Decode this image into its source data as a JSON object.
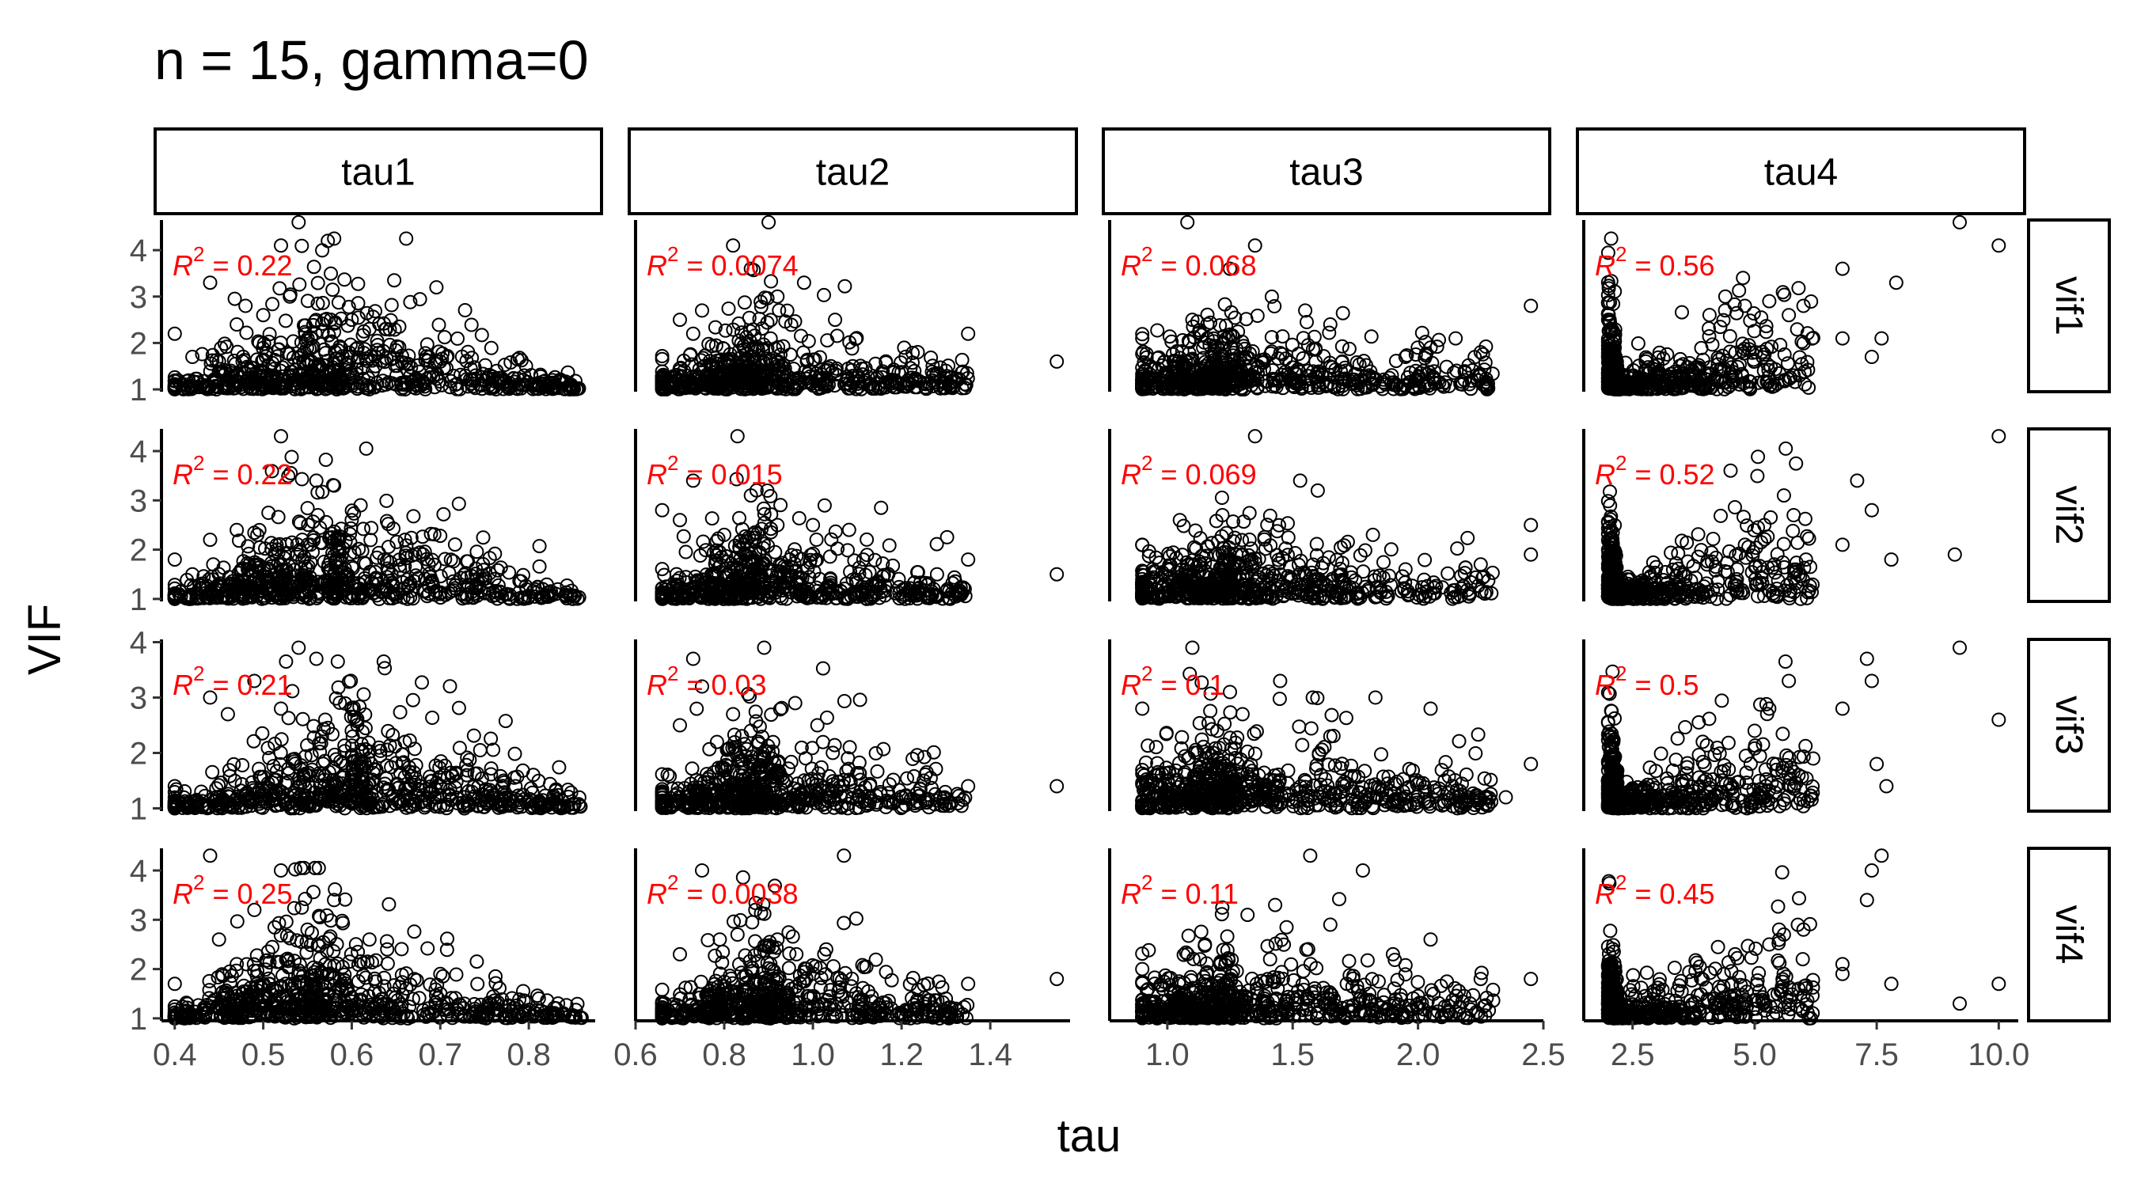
{
  "chart_data": {
    "type": "scatter",
    "title": "n = 15, gamma=0",
    "xlabel": "tau",
    "ylabel": "VIF",
    "grid": false,
    "marker": "open-circle",
    "annotation_color": "#ff0000",
    "columns": [
      {
        "label": "tau1",
        "xlim": [
          0.385,
          0.875
        ],
        "xticks": [
          0.4,
          0.5,
          0.6,
          0.7,
          0.8
        ],
        "xtick_labels": [
          "0.4",
          "0.5",
          "0.6",
          "0.7",
          "0.8"
        ]
      },
      {
        "label": "tau2",
        "xlim": [
          0.6,
          1.58
        ],
        "xticks": [
          0.6,
          0.8,
          1.0,
          1.2,
          1.4
        ],
        "xtick_labels": [
          "0.6",
          "0.8",
          "1.0",
          "1.2",
          "1.4"
        ]
      },
      {
        "label": "tau3",
        "xlim": [
          0.77,
          2.5
        ],
        "xticks": [
          1.0,
          1.5,
          2.0,
          2.5
        ],
        "xtick_labels": [
          "1.0",
          "1.5",
          "2.0",
          "2.5"
        ]
      },
      {
        "label": "tau4",
        "xlim": [
          1.5,
          10.4
        ],
        "xticks": [
          2.5,
          5.0,
          7.5,
          10.0
        ],
        "xtick_labels": [
          "2.5",
          "5.0",
          "7.5",
          "10.0"
        ]
      }
    ],
    "rows": [
      {
        "label": "vif1",
        "ylim": [
          0.95,
          4.65
        ],
        "yticks": [
          1,
          2,
          3,
          4
        ],
        "ytick_labels": [
          "1",
          "2",
          "3",
          "4"
        ]
      },
      {
        "label": "vif2",
        "ylim": [
          0.95,
          4.45
        ],
        "yticks": [
          1,
          2,
          3,
          4
        ],
        "ytick_labels": [
          "1",
          "2",
          "3",
          "4"
        ]
      },
      {
        "label": "vif3",
        "ylim": [
          0.95,
          4.05
        ],
        "yticks": [
          1,
          2,
          3,
          4
        ],
        "ytick_labels": [
          "1",
          "2",
          "3",
          "4"
        ]
      },
      {
        "label": "vif4",
        "ylim": [
          0.95,
          4.45
        ],
        "yticks": [
          1,
          2,
          3,
          4
        ],
        "ytick_labels": [
          "1",
          "2",
          "3",
          "4"
        ]
      }
    ],
    "r2_prefix": "R",
    "r2_exponent": "2",
    "r2_separator": " = ",
    "r2": [
      [
        "0.22",
        "0.0074",
        "0.068",
        "0.56"
      ],
      [
        "0.22",
        "0.015",
        "0.069",
        "0.52"
      ],
      [
        "0.21",
        "0.03",
        "0.1",
        "0.5"
      ],
      [
        "0.25",
        "0.0038",
        "0.11",
        "0.45"
      ]
    ],
    "bulk": [
      [
        {
          "xmin": 0.4,
          "xmax": 0.86,
          "mode": 0.58,
          "yfloor": 1.0,
          "peak_spread": 1.5,
          "edge_spread": 0.12,
          "n": 700
        },
        {
          "xmin": 0.66,
          "xmax": 1.35,
          "mode": 0.88,
          "yfloor": 1.0,
          "peak_spread": 1.1,
          "edge_spread": 0.35,
          "n": 600
        },
        {
          "xmin": 0.9,
          "xmax": 2.3,
          "mode": 1.25,
          "yfloor": 1.0,
          "peak_spread": 1.0,
          "edge_spread": 0.55,
          "n": 650
        },
        {
          "xmin": 2.0,
          "xmax": 6.2,
          "mode": 2.2,
          "yfloor": 1.0,
          "peak_spread": 0.2,
          "edge_spread": 1.8,
          "n": 650
        }
      ],
      [
        {
          "xmin": 0.4,
          "xmax": 0.86,
          "mode": 0.58,
          "yfloor": 1.0,
          "peak_spread": 1.5,
          "edge_spread": 0.12,
          "n": 700
        },
        {
          "xmin": 0.66,
          "xmax": 1.35,
          "mode": 0.88,
          "yfloor": 1.0,
          "peak_spread": 1.1,
          "edge_spread": 0.35,
          "n": 600
        },
        {
          "xmin": 0.9,
          "xmax": 2.3,
          "mode": 1.25,
          "yfloor": 1.0,
          "peak_spread": 1.0,
          "edge_spread": 0.55,
          "n": 650
        },
        {
          "xmin": 2.0,
          "xmax": 6.2,
          "mode": 2.2,
          "yfloor": 1.0,
          "peak_spread": 0.2,
          "edge_spread": 1.7,
          "n": 650
        }
      ],
      [
        {
          "xmin": 0.4,
          "xmax": 0.86,
          "mode": 0.6,
          "yfloor": 1.0,
          "peak_spread": 1.4,
          "edge_spread": 0.12,
          "n": 700
        },
        {
          "xmin": 0.66,
          "xmax": 1.35,
          "mode": 0.88,
          "yfloor": 1.0,
          "peak_spread": 1.2,
          "edge_spread": 0.35,
          "n": 600
        },
        {
          "xmin": 0.9,
          "xmax": 2.3,
          "mode": 1.25,
          "yfloor": 1.0,
          "peak_spread": 1.1,
          "edge_spread": 0.55,
          "n": 650
        },
        {
          "xmin": 2.0,
          "xmax": 6.2,
          "mode": 2.2,
          "yfloor": 1.0,
          "peak_spread": 0.2,
          "edge_spread": 1.6,
          "n": 650
        }
      ],
      [
        {
          "xmin": 0.4,
          "xmax": 0.86,
          "mode": 0.56,
          "yfloor": 1.0,
          "peak_spread": 1.5,
          "edge_spread": 0.12,
          "n": 700
        },
        {
          "xmin": 0.66,
          "xmax": 1.35,
          "mode": 0.9,
          "yfloor": 1.0,
          "peak_spread": 1.2,
          "edge_spread": 0.35,
          "n": 600
        },
        {
          "xmin": 0.9,
          "xmax": 2.3,
          "mode": 1.25,
          "yfloor": 1.0,
          "peak_spread": 1.0,
          "edge_spread": 0.55,
          "n": 650
        },
        {
          "xmin": 2.0,
          "xmax": 6.2,
          "mode": 2.2,
          "yfloor": 1.0,
          "peak_spread": 0.2,
          "edge_spread": 1.5,
          "n": 650
        }
      ]
    ],
    "outliers": [
      [
        [
          [
            0.4,
            2.2
          ],
          [
            0.44,
            3.3
          ],
          [
            0.52,
            4.1
          ],
          [
            0.54,
            4.6
          ],
          [
            0.48,
            2.8
          ],
          [
            0.5,
            2.6
          ],
          [
            0.53,
            3.0
          ],
          [
            0.45,
            1.6
          ],
          [
            0.47,
            2.4
          ],
          [
            0.6,
            2.5
          ],
          [
            0.62,
            2.3
          ],
          [
            0.7,
            1.6
          ],
          [
            0.74,
            1.3
          ],
          [
            0.42,
            1.7
          ]
        ],
        [
          [
            0.82,
            4.1
          ],
          [
            0.9,
            4.6
          ],
          [
            0.98,
            3.3
          ],
          [
            0.92,
            3.0
          ],
          [
            0.75,
            2.7
          ],
          [
            0.73,
            2.2
          ],
          [
            1.35,
            2.2
          ],
          [
            1.55,
            1.6
          ],
          [
            1.3,
            1.4
          ],
          [
            0.86,
            3.6
          ],
          [
            1.05,
            2.5
          ],
          [
            0.7,
            2.5
          ]
        ],
        [
          [
            1.08,
            4.6
          ],
          [
            1.35,
            4.1
          ],
          [
            1.25,
            3.6
          ],
          [
            1.55,
            2.7
          ],
          [
            2.45,
            2.8
          ],
          [
            2.15,
            2.1
          ],
          [
            2.25,
            1.8
          ],
          [
            0.9,
            2.1
          ],
          [
            1.65,
            2.4
          ],
          [
            1.1,
            2.5
          ],
          [
            1.95,
            1.7
          ],
          [
            2.05,
            1.9
          ]
        ],
        [
          [
            9.2,
            4.6
          ],
          [
            10.0,
            4.1
          ],
          [
            7.9,
            3.3
          ],
          [
            6.8,
            3.6
          ],
          [
            5.3,
            2.9
          ],
          [
            6.0,
            2.8
          ],
          [
            5.7,
            2.6
          ],
          [
            6.8,
            2.1
          ],
          [
            7.6,
            2.1
          ],
          [
            7.4,
            1.7
          ],
          [
            5.8,
            1.3
          ],
          [
            4.4,
            3.0
          ],
          [
            4.8,
            2.8
          ]
        ]
      ],
      [
        [
          [
            0.52,
            4.3
          ],
          [
            0.56,
            3.4
          ],
          [
            0.58,
            3.3
          ],
          [
            0.47,
            2.4
          ],
          [
            0.44,
            2.2
          ],
          [
            0.4,
            1.8
          ],
          [
            0.6,
            2.6
          ],
          [
            0.61,
            2.9
          ],
          [
            0.42,
            1.5
          ],
          [
            0.55,
            2.1
          ],
          [
            0.66,
            2.2
          ]
        ],
        [
          [
            0.83,
            4.3
          ],
          [
            0.86,
            3.1
          ],
          [
            0.73,
            3.4
          ],
          [
            0.66,
            2.8
          ],
          [
            0.7,
            2.6
          ],
          [
            0.92,
            2.5
          ],
          [
            1.35,
            1.8
          ],
          [
            1.55,
            1.5
          ],
          [
            1.28,
            1.5
          ],
          [
            1.0,
            2.5
          ],
          [
            0.8,
            2.3
          ]
        ],
        [
          [
            1.35,
            4.3
          ],
          [
            1.53,
            3.4
          ],
          [
            1.22,
            2.7
          ],
          [
            1.6,
            3.2
          ],
          [
            2.45,
            2.5
          ],
          [
            2.45,
            1.9
          ],
          [
            2.25,
            1.7
          ],
          [
            0.9,
            2.1
          ],
          [
            1.82,
            2.3
          ],
          [
            1.05,
            2.6
          ],
          [
            1.95,
            1.6
          ]
        ],
        [
          [
            10.0,
            4.3
          ],
          [
            7.1,
            3.4
          ],
          [
            5.6,
            3.1
          ],
          [
            7.4,
            2.8
          ],
          [
            7.8,
            1.8
          ],
          [
            9.1,
            1.9
          ],
          [
            6.8,
            2.1
          ],
          [
            5.8,
            2.7
          ],
          [
            5.4,
            1.7
          ],
          [
            5.9,
            1.5
          ],
          [
            5.2,
            2.5
          ],
          [
            4.8,
            2.1
          ]
        ]
      ],
      [
        [
          [
            0.54,
            3.9
          ],
          [
            0.56,
            3.7
          ],
          [
            0.49,
            3.3
          ],
          [
            0.44,
            3.0
          ],
          [
            0.46,
            2.7
          ],
          [
            0.52,
            2.8
          ],
          [
            0.4,
            1.4
          ],
          [
            0.43,
            1.3
          ],
          [
            0.57,
            2.6
          ],
          [
            0.66,
            2.2
          ],
          [
            0.6,
            2.4
          ]
        ],
        [
          [
            0.73,
            3.7
          ],
          [
            0.89,
            3.9
          ],
          [
            0.75,
            3.2
          ],
          [
            0.96,
            2.9
          ],
          [
            0.82,
            2.7
          ],
          [
            1.01,
            2.5
          ],
          [
            1.55,
            1.4
          ],
          [
            1.35,
            1.4
          ],
          [
            1.25,
            1.5
          ],
          [
            0.7,
            2.5
          ],
          [
            0.86,
            2.4
          ]
        ],
        [
          [
            1.1,
            3.9
          ],
          [
            1.45,
            3.3
          ],
          [
            1.25,
            3.1
          ],
          [
            1.58,
            3.0
          ],
          [
            1.83,
            3.0
          ],
          [
            2.05,
            2.8
          ],
          [
            2.45,
            1.8
          ],
          [
            2.35,
            1.2
          ],
          [
            0.9,
            2.8
          ],
          [
            1.3,
            2.7
          ],
          [
            1.65,
            2.3
          ]
        ],
        [
          [
            9.2,
            3.9
          ],
          [
            10.0,
            2.6
          ],
          [
            7.3,
            3.7
          ],
          [
            7.4,
            3.3
          ],
          [
            5.7,
            3.3
          ],
          [
            5.3,
            2.8
          ],
          [
            6.8,
            2.8
          ],
          [
            7.7,
            1.4
          ],
          [
            7.5,
            1.8
          ],
          [
            5.9,
            1.6
          ],
          [
            6.2,
            1.9
          ],
          [
            5.0,
            2.4
          ]
        ]
      ],
      [
        [
          [
            0.44,
            4.3
          ],
          [
            0.52,
            4.0
          ],
          [
            0.58,
            3.4
          ],
          [
            0.49,
            3.2
          ],
          [
            0.55,
            2.8
          ],
          [
            0.45,
            2.6
          ],
          [
            0.4,
            1.7
          ],
          [
            0.62,
            2.6
          ],
          [
            0.64,
            2.4
          ],
          [
            0.7,
            1.9
          ],
          [
            0.47,
            2.1
          ]
        ],
        [
          [
            0.75,
            4.0
          ],
          [
            1.07,
            4.3
          ],
          [
            0.87,
            3.2
          ],
          [
            0.83,
            2.7
          ],
          [
            0.79,
            2.6
          ],
          [
            1.03,
            2.4
          ],
          [
            1.35,
            1.7
          ],
          [
            1.55,
            1.8
          ],
          [
            1.3,
            1.4
          ],
          [
            0.7,
            2.3
          ],
          [
            0.92,
            2.6
          ]
        ],
        [
          [
            1.57,
            4.3
          ],
          [
            1.78,
            4.0
          ],
          [
            1.43,
            3.3
          ],
          [
            1.32,
            3.1
          ],
          [
            1.65,
            2.9
          ],
          [
            2.05,
            2.6
          ],
          [
            2.45,
            1.8
          ],
          [
            2.25,
            1.8
          ],
          [
            0.9,
            2.0
          ],
          [
            1.9,
            2.3
          ],
          [
            1.15,
            2.5
          ]
        ],
        [
          [
            7.6,
            4.3
          ],
          [
            7.4,
            4.0
          ],
          [
            7.3,
            3.4
          ],
          [
            5.6,
            2.7
          ],
          [
            6.0,
            2.8
          ],
          [
            5.3,
            2.5
          ],
          [
            7.8,
            1.7
          ],
          [
            6.8,
            2.1
          ],
          [
            6.8,
            1.9
          ],
          [
            9.2,
            1.3
          ],
          [
            10.0,
            1.7
          ],
          [
            5.9,
            1.6
          ],
          [
            4.6,
            2.3
          ]
        ]
      ]
    ]
  }
}
